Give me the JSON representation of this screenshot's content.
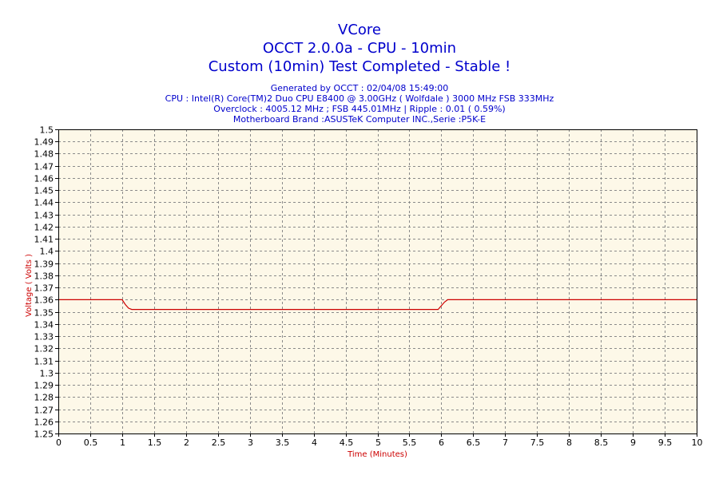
{
  "colors": {
    "title": "#0000cc",
    "plot_bg": "#fdf8e8",
    "series": "#cc0000",
    "axis_label": "#cc0000",
    "grid": "#8a8a8a"
  },
  "header": {
    "title": "VCore",
    "subtitle": "OCCT 2.0.0a - CPU - 10min",
    "status": "Custom (10min) Test Completed - Stable !",
    "generated": "Generated by OCCT : 02/04/08 15:49:00",
    "cpu": "CPU : Intel(R) Core(TM)2 Duo CPU E8400 @ 3.00GHz ( Wolfdale ) 3000 MHz FSB 333MHz",
    "overclock": "Overclock : 4005.12 MHz ; FSB 445.01MHz | Ripple : 0.01 ( 0.59%)",
    "motherboard": "Motherboard Brand :ASUSTeK Computer INC.,Serie :P5K-E"
  },
  "chart_data": {
    "type": "line",
    "xlabel": "Time (Minutes)",
    "ylabel": "Voltage ( Volts )",
    "xlim": [
      0,
      10
    ],
    "ylim": [
      1.25,
      1.5
    ],
    "x_ticks": [
      "0",
      "0.5",
      "1",
      "1.5",
      "2",
      "2.5",
      "3",
      "3.5",
      "4",
      "4.5",
      "5",
      "5.5",
      "6",
      "6.5",
      "7",
      "7.5",
      "8",
      "8.5",
      "9",
      "9.5",
      "10"
    ],
    "y_ticks": [
      "1.25",
      "1.26",
      "1.27",
      "1.28",
      "1.29",
      "1.3",
      "1.31",
      "1.32",
      "1.33",
      "1.34",
      "1.35",
      "1.36",
      "1.37",
      "1.38",
      "1.39",
      "1.4",
      "1.41",
      "1.42",
      "1.43",
      "1.44",
      "1.45",
      "1.46",
      "1.47",
      "1.48",
      "1.49",
      "1.5"
    ],
    "grid": true,
    "series": [
      {
        "x": [
          0,
          1.0,
          1.05,
          1.1,
          1.15,
          2,
          3,
          4,
          5,
          5.95,
          6.0,
          6.05,
          6.1,
          7,
          8,
          9,
          10
        ],
        "y": [
          1.36,
          1.36,
          1.356,
          1.353,
          1.352,
          1.352,
          1.352,
          1.352,
          1.352,
          1.352,
          1.355,
          1.358,
          1.36,
          1.36,
          1.36,
          1.36,
          1.36
        ]
      }
    ]
  }
}
